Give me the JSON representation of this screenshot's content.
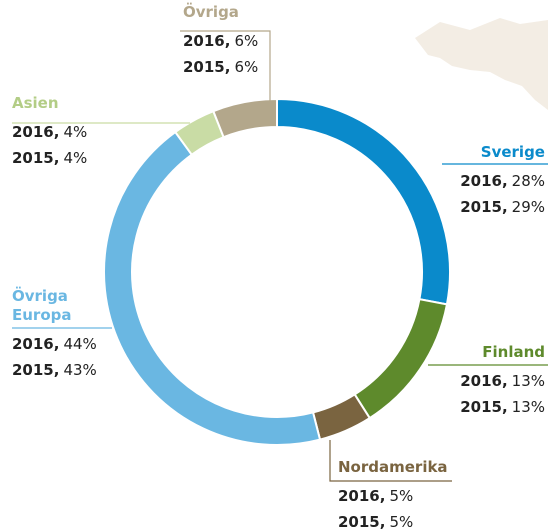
{
  "chart_data": {
    "type": "pie",
    "donut": true,
    "categories": [
      "Sverige",
      "Finland",
      "Nordamerika",
      "Övriga Europa",
      "Asien",
      "Övriga"
    ],
    "colors": [
      "#0a8acb",
      "#5e8a2c",
      "#7a6440",
      "#6ab7e2",
      "#c9dca5",
      "#b3a78b"
    ],
    "series": [
      {
        "name": "2016",
        "values": [
          28,
          13,
          5,
          44,
          4,
          6
        ],
        "value_labels": [
          "28%",
          "13%",
          "5%",
          "44%",
          "4%",
          "6%"
        ]
      },
      {
        "name": "2015",
        "values": [
          29,
          13,
          5,
          43,
          4,
          6
        ],
        "value_labels": [
          "29%",
          "13%",
          "5%",
          "43%",
          "4%",
          "6%"
        ]
      }
    ]
  }
}
